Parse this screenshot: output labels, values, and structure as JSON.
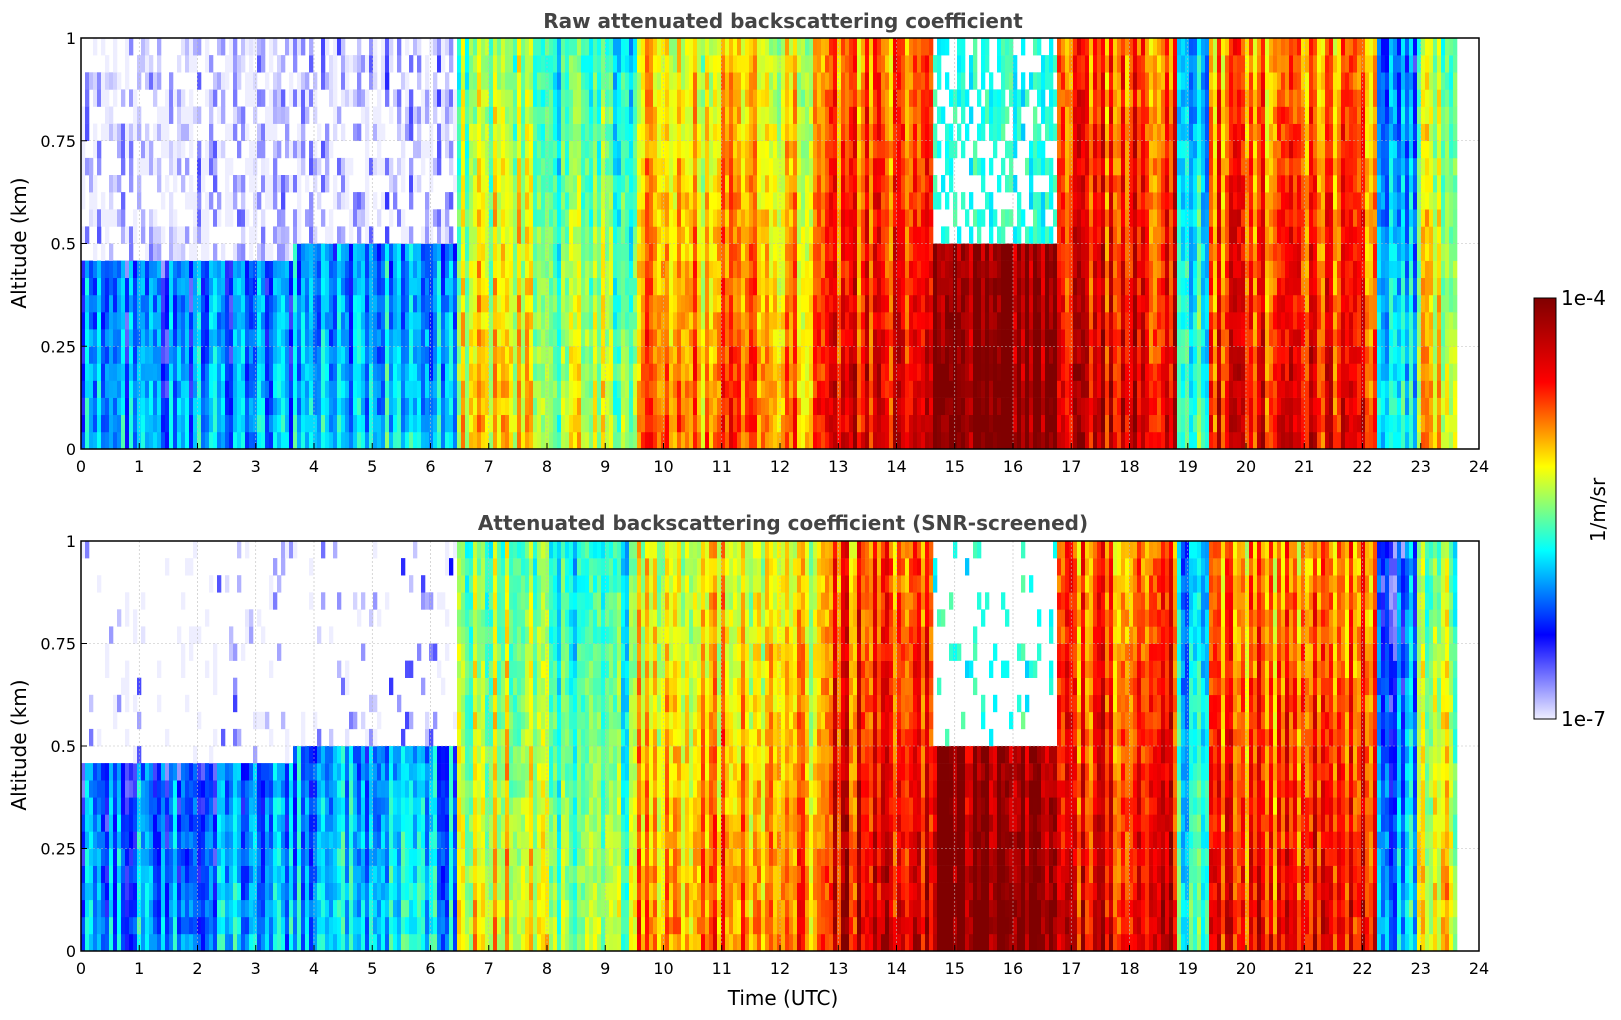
{
  "chart_data": [
    {
      "type": "heatmap",
      "title": "Raw attenuated backscattering coefficient",
      "xlabel": "",
      "ylabel": "Altitude (km)",
      "xlim": [
        0,
        24
      ],
      "ylim": [
        0,
        1
      ],
      "xticks": [
        "0",
        "1",
        "2",
        "3",
        "4",
        "5",
        "6",
        "7",
        "8",
        "9",
        "10",
        "11",
        "12",
        "13",
        "14",
        "15",
        "16",
        "17",
        "18",
        "19",
        "20",
        "21",
        "22",
        "23",
        "24"
      ],
      "yticks": [
        "0",
        "0.25",
        "0.5",
        "0.75",
        "1"
      ],
      "grid": true,
      "screened": false,
      "data_end_hour": 23.6,
      "column_profiles": [
        {
          "from": 0,
          "to": 3.6,
          "level": 0.2,
          "height": 0.45,
          "note": "noisy low signal"
        },
        {
          "from": 3.6,
          "to": 6.4,
          "level": 0.25,
          "height": 0.5
        },
        {
          "from": 6.4,
          "to": 8.0,
          "level": 0.55,
          "height": 1.0
        },
        {
          "from": 8.0,
          "to": 9.5,
          "level": 0.45,
          "height": 1.0
        },
        {
          "from": 9.5,
          "to": 12.7,
          "level": 0.65,
          "height": 1.0
        },
        {
          "from": 12.7,
          "to": 14.6,
          "level": 0.8,
          "height": 1.0
        },
        {
          "from": 14.6,
          "to": 16.7,
          "level": 0.95,
          "height": 0.5
        },
        {
          "from": 16.7,
          "to": 18.8,
          "level": 0.8,
          "height": 1.0
        },
        {
          "from": 18.8,
          "to": 19.3,
          "level": 0.35,
          "height": 1.0
        },
        {
          "from": 19.3,
          "to": 22.2,
          "level": 0.75,
          "height": 1.0
        },
        {
          "from": 22.2,
          "to": 22.9,
          "level": 0.25,
          "height": 1.0
        },
        {
          "from": 22.9,
          "to": 23.6,
          "level": 0.55,
          "height": 1.0
        }
      ]
    },
    {
      "type": "heatmap",
      "title": "Attenuated backscattering coefficient (SNR-screened)",
      "xlabel": "Time (UTC)",
      "ylabel": "Altitude (km)",
      "xlim": [
        0,
        24
      ],
      "ylim": [
        0,
        1
      ],
      "xticks": [
        "0",
        "1",
        "2",
        "3",
        "4",
        "5",
        "6",
        "7",
        "8",
        "9",
        "10",
        "11",
        "12",
        "13",
        "14",
        "15",
        "16",
        "17",
        "18",
        "19",
        "20",
        "21",
        "22",
        "23",
        "24"
      ],
      "yticks": [
        "0",
        "0.25",
        "0.5",
        "0.75",
        "1"
      ],
      "grid": true,
      "screened": true,
      "data_end_hour": 23.6
    }
  ],
  "colorbar": {
    "colormap": "jet",
    "min_label": "1e-7",
    "max_label": "1e-4",
    "label": "1/m/sr",
    "colors": [
      "#eeeeff",
      "#0000ff",
      "#00ffff",
      "#ffff00",
      "#ff0000",
      "#800000"
    ]
  }
}
